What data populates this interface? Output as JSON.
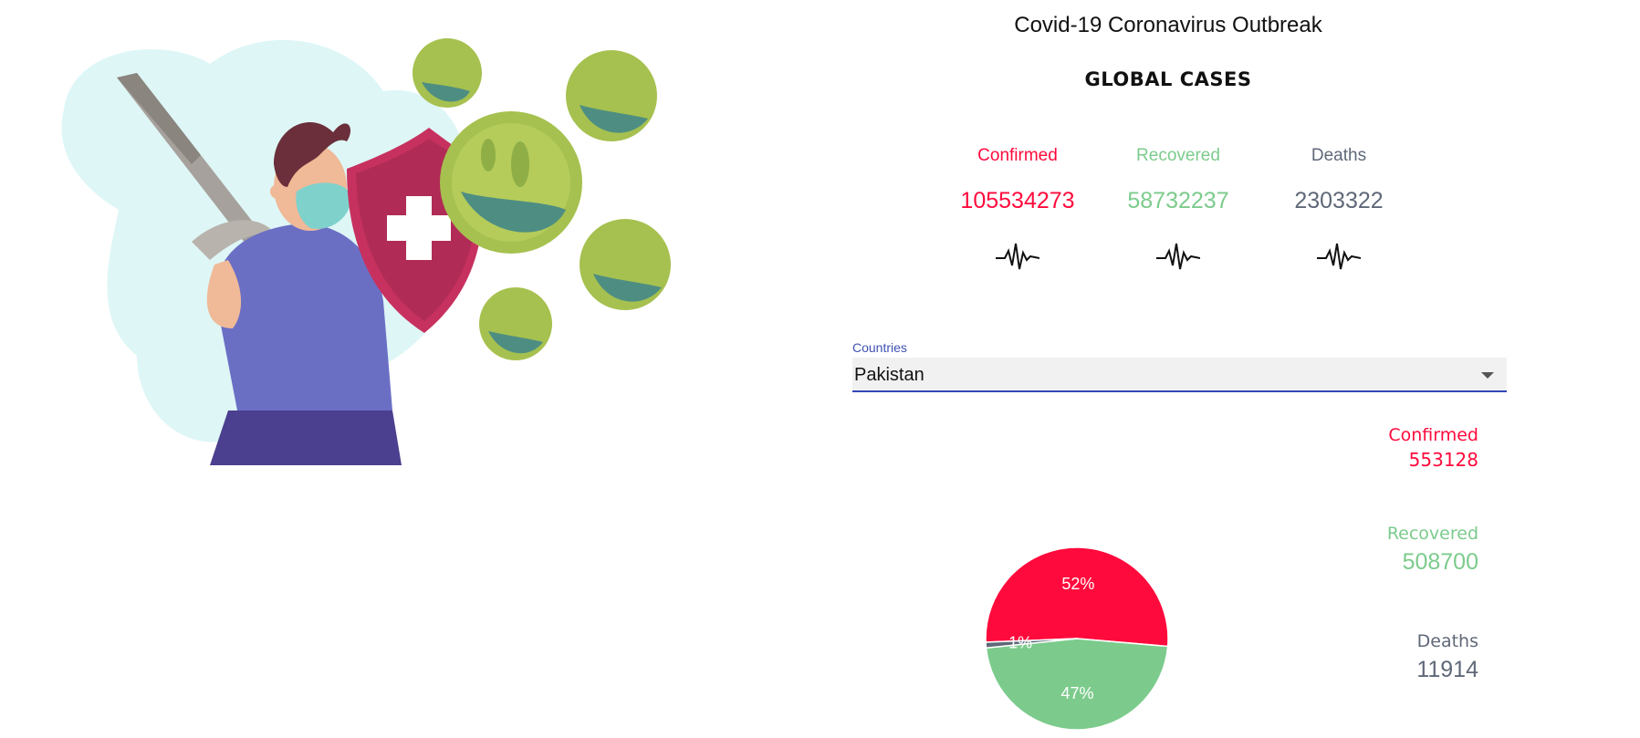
{
  "header": {
    "title": "Covid-19 Coronavirus Outbreak",
    "subtitle": "GLOBAL CASES"
  },
  "global": {
    "confirmed": {
      "label": "Confirmed",
      "value": "105534273",
      "color": "#ff0a3c"
    },
    "recovered": {
      "label": "Recovered",
      "value": "58732237",
      "color": "#7ccb8c"
    },
    "deaths": {
      "label": "Deaths",
      "value": "2303322",
      "color": "#5f6878"
    }
  },
  "countries": {
    "label": "Countries",
    "selected": "Pakistan"
  },
  "country": {
    "confirmed": {
      "label": "Confirmed",
      "value": "553128"
    },
    "recovered": {
      "label": "Recovered",
      "value": "508700"
    },
    "deaths": {
      "label": "Deaths",
      "value": "11914"
    }
  },
  "chart_data": {
    "type": "pie",
    "categories": [
      "Confirmed",
      "Recovered",
      "Deaths"
    ],
    "values": [
      52,
      47,
      1
    ],
    "labels": [
      "52%",
      "47%",
      "1%"
    ],
    "colors": [
      "#ff0a3c",
      "#7ccb8c",
      "#5f6878"
    ]
  },
  "illustration": {
    "icon": "doctor-with-shield-and-sword-vs-virus-illustration"
  }
}
